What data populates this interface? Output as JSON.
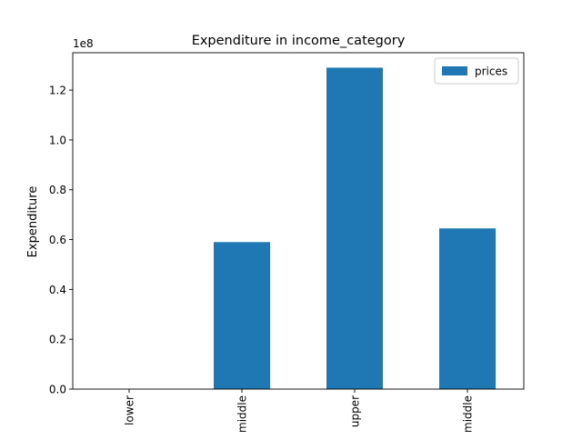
{
  "chart_data": {
    "type": "bar",
    "title": "Expenditure in income_category",
    "xlabel": "",
    "ylabel": "Expenditure",
    "y_scale_label": "1e8",
    "categories": [
      "lower",
      "middle",
      "upper",
      "middle"
    ],
    "series": [
      {
        "name": "prices",
        "values": [
          0,
          59000000,
          129000000,
          64500000
        ],
        "color": "#1f77b4"
      }
    ],
    "y_ticks": [
      {
        "value": 0,
        "label": "0.0"
      },
      {
        "value": 20000000,
        "label": "0.2"
      },
      {
        "value": 40000000,
        "label": "0.4"
      },
      {
        "value": 60000000,
        "label": "0.6"
      },
      {
        "value": 80000000,
        "label": "0.8"
      },
      {
        "value": 100000000,
        "label": "1.0"
      },
      {
        "value": 120000000,
        "label": "1.2"
      }
    ],
    "ylim": [
      0,
      135000000
    ],
    "grid": false,
    "legend_position": "top-right",
    "x_tick_rotation": "vertical"
  }
}
